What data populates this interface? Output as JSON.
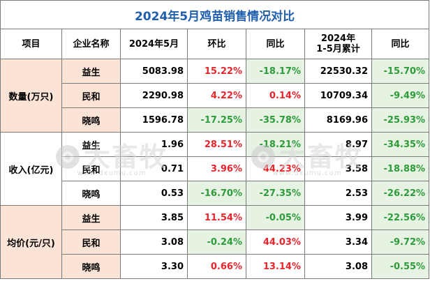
{
  "title": "2024年5月鸡苗销售情况对比",
  "headers": {
    "item": "项目",
    "company": "企业名称",
    "may": "2024年5月",
    "mom": "环比",
    "yoy": "同比",
    "cum_line1": "2024年",
    "cum_line2": "1-5月累计",
    "cum_yoy": "同比"
  },
  "groups": [
    {
      "name": "数量(万只)",
      "rows": [
        {
          "company": "益生",
          "may": "5083.98",
          "mom": "15.22%",
          "yoy": "-18.17%",
          "cum": "22530.32",
          "cum_yoy": "-15.70%"
        },
        {
          "company": "民和",
          "may": "2290.98",
          "mom": "4.22%",
          "yoy": "0.14%",
          "cum": "10709.34",
          "cum_yoy": "-9.49%"
        },
        {
          "company": "晓鸣",
          "may": "1596.78",
          "mom": "-17.25%",
          "yoy": "-35.78%",
          "cum": "8169.96",
          "cum_yoy": "-25.93%"
        }
      ]
    },
    {
      "name": "收入(亿元)",
      "rows": [
        {
          "company": "益生",
          "may": "1.96",
          "mom": "28.51%",
          "yoy": "-18.21%",
          "cum": "8.97",
          "cum_yoy": "-34.35%"
        },
        {
          "company": "民和",
          "may": "0.71",
          "mom": "3.96%",
          "yoy": "44.23%",
          "cum": "3.58",
          "cum_yoy": "-18.88%"
        },
        {
          "company": "晓鸣",
          "may": "0.53",
          "mom": "-16.70%",
          "yoy": "-27.35%",
          "cum": "2.53",
          "cum_yoy": "-26.22%"
        }
      ]
    },
    {
      "name": "均价(元/只)",
      "rows": [
        {
          "company": "益生",
          "may": "3.85",
          "mom": "11.54%",
          "yoy": "-0.05%",
          "cum": "3.99",
          "cum_yoy": "-22.56%"
        },
        {
          "company": "民和",
          "may": "3.08",
          "mom": "-0.24%",
          "yoy": "44.03%",
          "cum": "3.34",
          "cum_yoy": "-9.72%"
        },
        {
          "company": "晓鸣",
          "may": "3.30",
          "mom": "0.66%",
          "yoy": "13.14%",
          "cum": "3.08",
          "cum_yoy": "-0.55%"
        }
      ]
    }
  ],
  "watermark": {
    "brand": "大畜牧",
    "url": "www.dxumu.com",
    "icon": "brand-logo-icon"
  },
  "colors": {
    "title": "#1f5fae",
    "up": "#e8242c",
    "down": "#2e9b3b",
    "shade_pink": "#fbe3d6",
    "shade_green": "#e6f3e3"
  }
}
